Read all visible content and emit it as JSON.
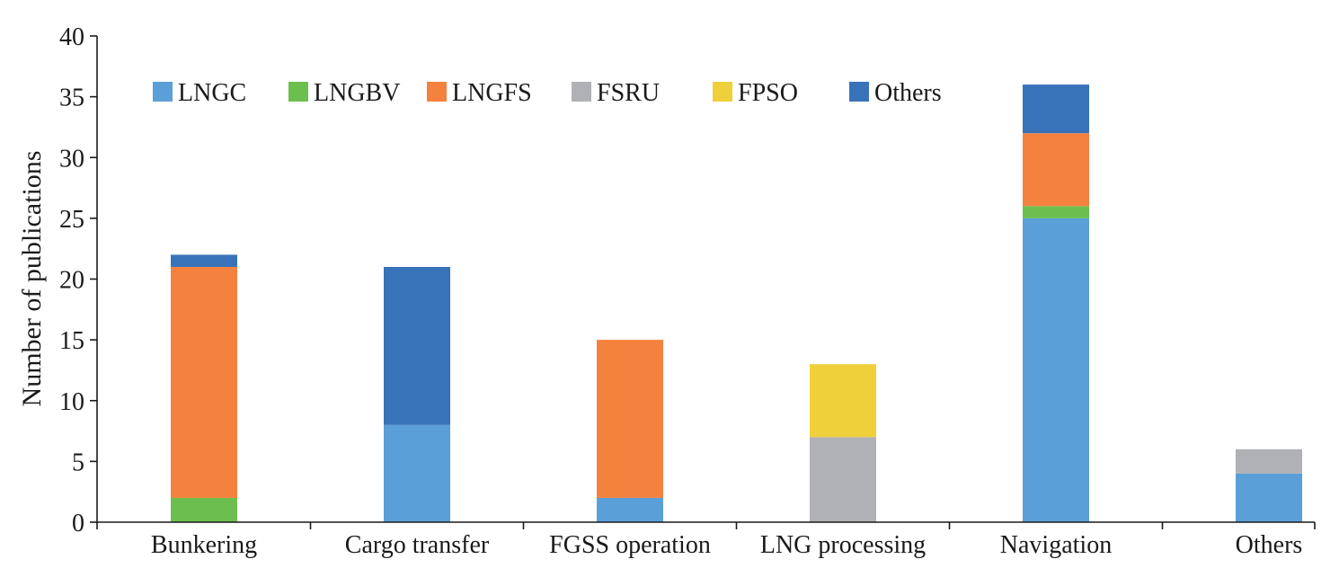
{
  "chart_data": {
    "type": "bar",
    "stacked": true,
    "title": "",
    "xlabel": "",
    "ylabel": "Number of publications",
    "ylim": [
      0,
      40
    ],
    "yticks": [
      0,
      5,
      10,
      15,
      20,
      25,
      30,
      35,
      40
    ],
    "grid": false,
    "legend_position": "top-left",
    "categories": [
      "Bunkering",
      "Cargo transfer",
      "FGSS operation",
      "LNG processing",
      "Navigation",
      "Others"
    ],
    "series": [
      {
        "name": "LNGC",
        "color": "#5b9fd8",
        "values": [
          0,
          8,
          2,
          0,
          25,
          4
        ]
      },
      {
        "name": "LNGBV",
        "color": "#6cbf4e",
        "values": [
          2,
          0,
          0,
          0,
          1,
          0
        ]
      },
      {
        "name": "LNGFS",
        "color": "#f5813e",
        "values": [
          19,
          0,
          13,
          0,
          6,
          0
        ]
      },
      {
        "name": "FSRU",
        "color": "#b0b1b4",
        "values": [
          0,
          0,
          0,
          7,
          0,
          2
        ]
      },
      {
        "name": "FPSO",
        "color": "#efd03b",
        "values": [
          0,
          0,
          0,
          6,
          0,
          0
        ]
      },
      {
        "name": "Others",
        "color": "#3872b8",
        "values": [
          1,
          13,
          0,
          0,
          4,
          0
        ]
      }
    ]
  }
}
